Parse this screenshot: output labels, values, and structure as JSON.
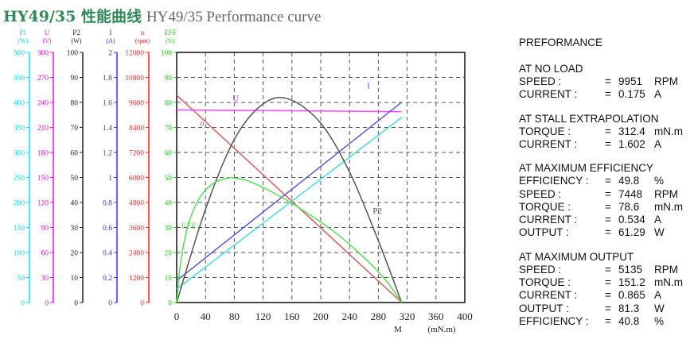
{
  "title": {
    "chinese": "HY49/35 性能曲线",
    "english": "HY49/35 Performance curve"
  },
  "chart_data": {
    "type": "line",
    "x_axis": {
      "ticks": [
        0,
        40,
        80,
        120,
        160,
        200,
        240,
        280,
        320,
        360,
        400
      ],
      "name": "M",
      "unit": "(mN.m)",
      "range": [
        0,
        400
      ]
    },
    "y_axes": [
      {
        "name": "P1",
        "unit": "(W)",
        "color": "#00e5ff",
        "ticks": [
          0,
          50,
          100,
          150,
          200,
          250,
          300,
          350,
          400,
          450,
          500
        ],
        "range": [
          0,
          500
        ]
      },
      {
        "name": "U",
        "unit": "(V)",
        "color": "#ff00ff",
        "ticks": [
          0,
          30,
          60,
          90,
          120,
          150,
          180,
          210,
          240,
          270,
          300
        ],
        "range": [
          0,
          300
        ]
      },
      {
        "name": "P2",
        "unit": "(W)",
        "color": "#222222",
        "ticks": [
          0,
          10,
          20,
          30,
          40,
          50,
          60,
          70,
          80,
          90,
          100
        ],
        "range": [
          0,
          100
        ]
      },
      {
        "name": "I",
        "unit": "(A)",
        "color": "#3333ff",
        "ticks": [
          "0",
          "0.2",
          "0.4",
          "0.6",
          "0.8",
          "1",
          "1.2",
          "1.4",
          "1.6",
          "1.8",
          "2"
        ],
        "range": [
          0,
          2
        ]
      },
      {
        "name": "n",
        "unit": "(rpm)",
        "color": "#ff2222",
        "ticks": [
          0,
          1200,
          2400,
          3600,
          4800,
          6000,
          7200,
          8400,
          9600,
          10800,
          12000
        ],
        "range": [
          0,
          12000
        ]
      },
      {
        "name": "EFF",
        "unit": "(%)",
        "color": "#22cc22",
        "ticks": [
          0,
          10,
          20,
          30,
          40,
          50,
          60,
          70,
          80,
          90,
          100
        ],
        "range": [
          0,
          100
        ]
      }
    ],
    "grid": true,
    "series": [
      {
        "name": "U",
        "axis": 1,
        "color": "#ff44ff",
        "label_at": [
          75,
          240
        ],
        "points": [
          [
            0,
            231
          ],
          [
            312,
            229
          ]
        ]
      },
      {
        "name": "n",
        "axis": 4,
        "color": "#e05a5a",
        "label_at": [
          30,
          8400
        ],
        "points": [
          [
            0,
            9951
          ],
          [
            312.4,
            0
          ]
        ]
      },
      {
        "name": "I",
        "axis": 3,
        "color": "#5555dd",
        "label_at": [
          262,
          1.7
        ],
        "points": [
          [
            0,
            0.175
          ],
          [
            312.4,
            1.602
          ]
        ]
      },
      {
        "name": "",
        "axis": 0,
        "color": "#44dddd",
        "label_at": null,
        "points": [
          [
            0,
            27
          ],
          [
            312.4,
            370
          ]
        ]
      },
      {
        "name": "P2",
        "axis": 2,
        "color": "#555555",
        "label_at": [
          270,
          35
        ],
        "points": [
          [
            0,
            0
          ],
          [
            40,
            37.3
          ],
          [
            80,
            65.2
          ],
          [
            120,
            79.4
          ],
          [
            156,
            81.3
          ],
          [
            200,
            71.7
          ],
          [
            240,
            52.2
          ],
          [
            280,
            24.7
          ],
          [
            312.4,
            0
          ]
        ]
      },
      {
        "name": "EFF",
        "axis": 5,
        "color": "#55dd55",
        "label_at": [
          4,
          29
        ],
        "points": [
          [
            0,
            0
          ],
          [
            5,
            15
          ],
          [
            15,
            30
          ],
          [
            30,
            41
          ],
          [
            50,
            47.5
          ],
          [
            70,
            49.7
          ],
          [
            78.6,
            49.8
          ],
          [
            100,
            48.5
          ],
          [
            140,
            43
          ],
          [
            180,
            36
          ],
          [
            220,
            28
          ],
          [
            260,
            18
          ],
          [
            290,
            9
          ],
          [
            312.4,
            0
          ]
        ]
      }
    ]
  },
  "specs": {
    "heading": "PREFORMANCE",
    "sections": [
      {
        "title": "AT NO LOAD",
        "rows": [
          {
            "label": "SPEED :",
            "eq": "=",
            "value": "9951",
            "unit": "RPM"
          },
          {
            "label": "CURRENT :",
            "eq": "=",
            "value": "0.175",
            "unit": "A"
          }
        ]
      },
      {
        "title": "AT STALL EXTRAPOLATION",
        "rows": [
          {
            "label": "TORQUE :",
            "eq": "=",
            "value": "312.4",
            "unit": "mN.m"
          },
          {
            "label": "CURRENT :",
            "eq": "=",
            "value": "1.602",
            "unit": "A"
          }
        ]
      },
      {
        "title": "AT MAXIMUM EFFICIENCY",
        "rows": [
          {
            "label": "EFFICIENCY :",
            "eq": "=",
            "value": "49.8",
            "unit": "%"
          },
          {
            "label": "SPEED :",
            "eq": "=",
            "value": "7448",
            "unit": "RPM"
          },
          {
            "label": "TORQUE :",
            "eq": "=",
            "value": "78.6",
            "unit": "mN.m"
          },
          {
            "label": "CURRENT :",
            "eq": "=",
            "value": "0.534",
            "unit": "A"
          },
          {
            "label": "OUTPUT :",
            "eq": "=",
            "value": "61.29",
            "unit": "W"
          }
        ]
      },
      {
        "title": "AT MAXIMUM OUTPUT",
        "rows": [
          {
            "label": "SPEED :",
            "eq": "=",
            "value": "5135",
            "unit": "RPM"
          },
          {
            "label": "TORQUE :",
            "eq": "=",
            "value": "151.2",
            "unit": "mN.m"
          },
          {
            "label": "CURRENT :",
            "eq": "=",
            "value": "0.865",
            "unit": "A"
          },
          {
            "label": "OUTPUT :",
            "eq": "=",
            "value": "81.3",
            "unit": "W"
          },
          {
            "label": "EFFICIENCY :",
            "eq": "=",
            "value": "40.8",
            "unit": "%"
          }
        ]
      }
    ]
  }
}
